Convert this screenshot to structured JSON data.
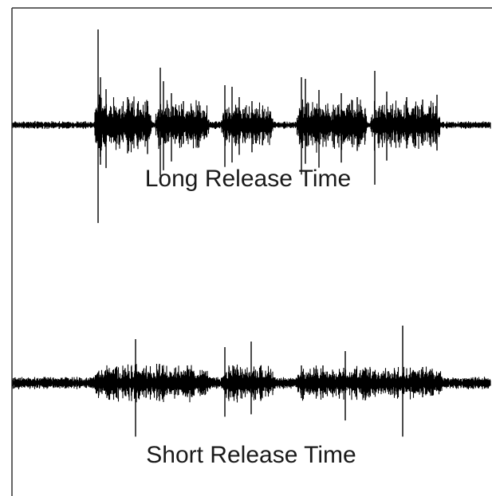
{
  "waveforms": [
    {
      "id": "long",
      "label": "Long Release Time",
      "color": "#000000",
      "bursts": [
        {
          "start": 118,
          "end": 190,
          "amp": 30,
          "peaks": [
            [
              123,
              120
            ],
            [
              126,
              60
            ],
            [
              133,
              45
            ],
            [
              160,
              35
            ],
            [
              185,
              30
            ]
          ]
        },
        {
          "start": 195,
          "end": 262,
          "amp": 26,
          "peaks": [
            [
              201,
              72
            ],
            [
              205,
              55
            ],
            [
              215,
              40
            ],
            [
              230,
              30
            ]
          ]
        },
        {
          "start": 278,
          "end": 342,
          "amp": 24,
          "peaks": [
            [
              282,
              50
            ],
            [
              291,
              48
            ],
            [
              300,
              35
            ],
            [
              316,
              30
            ]
          ]
        },
        {
          "start": 372,
          "end": 460,
          "amp": 26,
          "peaks": [
            [
              378,
              60
            ],
            [
              383,
              58
            ],
            [
              400,
              44
            ],
            [
              428,
              40
            ],
            [
              448,
              35
            ]
          ]
        },
        {
          "start": 465,
          "end": 552,
          "amp": 24,
          "peaks": [
            [
              470,
              68
            ],
            [
              485,
              42
            ],
            [
              510,
              35
            ],
            [
              530,
              32
            ],
            [
              548,
              38
            ]
          ]
        }
      ],
      "noise": 3.2
    },
    {
      "id": "short",
      "label": "Short Release Time",
      "color": "#000000",
      "bursts": [
        {
          "start": 118,
          "end": 262,
          "amp": 18,
          "peaks": [
            [
              170,
              55
            ],
            [
              200,
              24
            ],
            [
              235,
              22
            ]
          ]
        },
        {
          "start": 278,
          "end": 345,
          "amp": 18,
          "peaks": [
            [
              282,
              45
            ],
            [
              292,
              22
            ],
            [
              315,
              52
            ]
          ]
        },
        {
          "start": 372,
          "end": 555,
          "amp": 17,
          "peaks": [
            [
              378,
              22
            ],
            [
              405,
              22
            ],
            [
              433,
              40
            ],
            [
              505,
              72
            ],
            [
              530,
              20
            ]
          ]
        }
      ],
      "noise": 5
    }
  ]
}
